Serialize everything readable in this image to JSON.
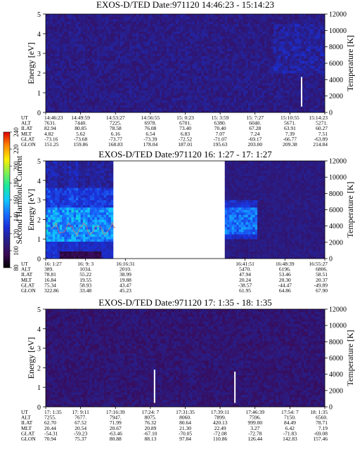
{
  "chart_data": [
    {
      "type": "heatmap",
      "title": "EXOS-D/TED   Date:971120  14:46:23 - 15:14:23",
      "ylabel": "Energy [eV]",
      "ylabel_right": "Temperature [K]",
      "ylim": [
        0,
        5
      ],
      "yticks": [
        "0",
        "1",
        "2",
        "3",
        "4",
        "5"
      ],
      "ylim_right": [
        0,
        12000
      ],
      "yticks_right": [
        "0",
        "2000",
        "4000",
        "6000",
        "8000",
        "10000",
        "12000"
      ],
      "data_gaps": [],
      "white_streaks": [
        {
          "ut_fraction": 0.917,
          "energy_min": 0.3,
          "energy_max": 1.8
        }
      ],
      "background_level": 110,
      "orbit_rows": [
        {
          "name": "UT",
          "values": [
            "14:46:23",
            "14:49:59",
            "14:53:27",
            "14:56:55",
            "15: 0:23",
            "15: 3:59",
            "15: 7:27",
            "15:10:55",
            "15:14:23"
          ]
        },
        {
          "name": "ALT",
          "values": [
            "7631.",
            "7440.",
            "7225.",
            "6978.",
            "6701.",
            "6380.",
            "6040.",
            "5671.",
            "5271."
          ]
        },
        {
          "name": "ILAT",
          "values": [
            "82.94",
            "80.85",
            "78.58",
            "76.08",
            "73.40",
            "70.40",
            "67.28",
            "63.91",
            "60.27"
          ]
        },
        {
          "name": "MLT",
          "values": [
            "4.82",
            "5.62",
            "6.16",
            "6.54",
            "6.83",
            "7.07",
            "7.24",
            "7.39",
            "7.51"
          ]
        },
        {
          "name": "GLAT",
          "values": [
            "-73.16",
            "-73.68",
            "-73.77",
            "-73.39",
            "-72.52",
            "-71.07",
            "-69.17",
            "-66.77",
            "-63.89"
          ]
        },
        {
          "name": "GLON",
          "values": [
            "151.25",
            "159.86",
            "168.83",
            "178.04",
            "187.01",
            "195.63",
            "203.00",
            "209.38",
            "214.84"
          ]
        }
      ]
    },
    {
      "type": "heatmap",
      "title": "EXOS-D/TED   Date:971120  16: 1:27 - 17: 1:27",
      "ylabel": "Energy [eV]",
      "ylabel_right": "Temperature [K]",
      "ylim": [
        0,
        5
      ],
      "yticks": [
        "0",
        "1",
        "2",
        "3",
        "4",
        "5"
      ],
      "ylim_right": [
        0,
        12000
      ],
      "yticks_right": [
        "0",
        "2000",
        "4000",
        "6000",
        "8000",
        "10000",
        "12000"
      ],
      "data_gaps": [
        {
          "from_fraction": 0.245,
          "to_fraction": 0.645
        }
      ],
      "white_streaks": [],
      "background_level": 100,
      "overlay_line_color": "#d07070",
      "orbit_rows": [
        {
          "name": "UT",
          "values": [
            "16: 1:27",
            "16: 9: 3",
            "16:16:31",
            "",
            "",
            "16:41:51",
            "16:48:39",
            "16:55:27"
          ]
        },
        {
          "name": "ALT",
          "values": [
            "389.",
            "1034.",
            "2010.",
            "",
            "",
            "5470.",
            "6196.",
            "6806."
          ]
        },
        {
          "name": "ILAT",
          "values": [
            "78.81",
            "55.22",
            "38.99",
            "",
            "",
            "47.94",
            "53.46",
            "58.51"
          ]
        },
        {
          "name": "MLT",
          "values": [
            "16.84",
            "19.55",
            "19.88",
            "",
            "",
            "20.24",
            "20.30",
            "20.37"
          ]
        },
        {
          "name": "GLAT",
          "values": [
            "75.34",
            "58.93",
            "43.47",
            "",
            "",
            "-38.57",
            "-44.47",
            "-49.89"
          ]
        },
        {
          "name": "GLON",
          "values": [
            "322.86",
            "33.48",
            "45.23",
            "",
            "",
            "61.95",
            "64.86",
            "67.90"
          ]
        }
      ]
    },
    {
      "type": "heatmap",
      "title": "EXOS-D/TED   Date:971120  17: 1:35 - 18: 1:35",
      "ylabel": "Energy [eV]",
      "ylabel_right": "Temperature [K]",
      "ylim": [
        0,
        5
      ],
      "yticks": [
        "0",
        "1",
        "2",
        "3",
        "4",
        "5"
      ],
      "ylim_right": [
        0,
        12000
      ],
      "yticks_right": [
        "0",
        "2000",
        "4000",
        "6000",
        "8000",
        "10000",
        "12000"
      ],
      "data_gaps": [],
      "white_streaks": [
        {
          "ut_fraction": 0.39,
          "energy_min": 0.2,
          "energy_max": 1.9
        },
        {
          "ut_fraction": 0.678,
          "energy_min": 0.2,
          "energy_max": 1.8
        }
      ],
      "background_level": 105,
      "orbit_rows": [
        {
          "name": "UT",
          "values": [
            "17: 1:35",
            "17: 9:11",
            "17:16:39",
            "17:24: 7",
            "17:31:35",
            "17:39:11",
            "17:46:39",
            "17:54: 7",
            "18: 1:35"
          ]
        },
        {
          "name": "ALT",
          "values": [
            "7255.",
            "7677.",
            "7947.",
            "8075.",
            "8060.",
            "7899.",
            "7596.",
            "7150.",
            "6560."
          ]
        },
        {
          "name": "ILAT",
          "values": [
            "62.70",
            "67.52",
            "71.99",
            "76.32",
            "80.64",
            "420.13",
            "999.00",
            "84.49",
            "78.71"
          ]
        },
        {
          "name": "MLT",
          "values": [
            "20.44",
            "20.54",
            "20.67",
            "20.89",
            "21.30",
            "22.49",
            "3.27",
            "6.42",
            "7.19"
          ]
        },
        {
          "name": "GLAT",
          "values": [
            "-54.31",
            "-59.23",
            "-63.46",
            "-67.10",
            "-70.05",
            "-72.08",
            "-72.78",
            "-71.83",
            "-69.08"
          ]
        },
        {
          "name": "GLON",
          "values": [
            "70.94",
            "75.37",
            "80.88",
            "88.13",
            "97.84",
            "110.86",
            "126.44",
            "142.83",
            "157.46"
          ]
        }
      ]
    }
  ],
  "colorbar": {
    "label": "Second Harmonic Current",
    "ticks": [
      "80",
      "100",
      "120",
      "140",
      "160",
      "180",
      "200",
      "220",
      "240"
    ],
    "range": [
      80,
      240
    ],
    "stops": [
      "#000000",
      "#3a0a55",
      "#281e88",
      "#1a30d8",
      "#1870ff",
      "#10c8ff",
      "#18e8a0",
      "#80f050",
      "#ffee00",
      "#ff8a00",
      "#e00000"
    ]
  }
}
